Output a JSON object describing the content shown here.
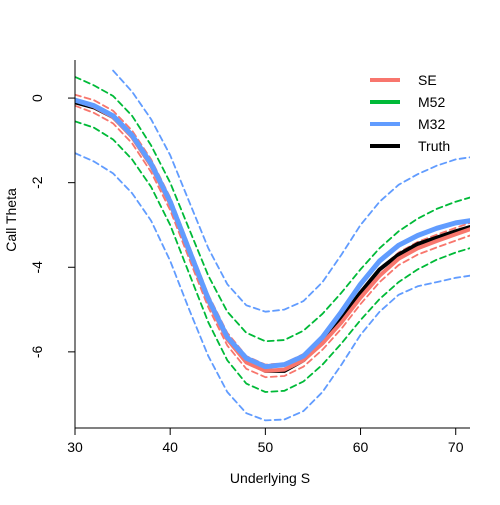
{
  "chart_data": {
    "type": "line",
    "title": "",
    "xlabel": "Underlying S",
    "ylabel": "Call Theta",
    "xlim": [
      30,
      71.5
    ],
    "ylim": [
      -7.8,
      0.9
    ],
    "x_ticks": [
      30,
      40,
      50,
      60,
      70
    ],
    "x_tick_labels": [
      "30",
      "40",
      "50",
      "60",
      "70"
    ],
    "y_ticks": [
      0,
      -2,
      -4,
      -6
    ],
    "y_tick_labels": [
      "0",
      "-2",
      "-4",
      "-6"
    ],
    "legend": {
      "position": "top-right",
      "entries": [
        {
          "label": "SE",
          "color": "#F8766D"
        },
        {
          "label": "M52",
          "color": "#00BA38"
        },
        {
          "label": "M32",
          "color": "#619CFF"
        },
        {
          "label": "Truth",
          "color": "#000000"
        }
      ]
    },
    "x": [
      30,
      32,
      34,
      36,
      38,
      40,
      42,
      44,
      46,
      48,
      50,
      52,
      54,
      56,
      58,
      60,
      62,
      64,
      66,
      68,
      70,
      71.5
    ],
    "series": [
      {
        "name": "Truth",
        "style": "solid",
        "color": "#000000",
        "values": [
          -0.1,
          -0.22,
          -0.45,
          -0.9,
          -1.55,
          -2.45,
          -3.6,
          -4.75,
          -5.65,
          -6.2,
          -6.45,
          -6.45,
          -6.2,
          -5.75,
          -5.2,
          -4.6,
          -4.05,
          -3.7,
          -3.45,
          -3.3,
          -3.15,
          -3.05
        ]
      },
      {
        "name": "SE",
        "style": "solid",
        "color": "#F8766D",
        "values": [
          -0.05,
          -0.2,
          -0.45,
          -0.92,
          -1.6,
          -2.5,
          -3.65,
          -4.8,
          -5.7,
          -6.25,
          -6.45,
          -6.42,
          -6.2,
          -5.8,
          -5.3,
          -4.72,
          -4.2,
          -3.8,
          -3.55,
          -3.38,
          -3.22,
          -3.1
        ]
      },
      {
        "name": "SE upper",
        "style": "dashed",
        "color": "#F8766D",
        "values": [
          0.08,
          -0.05,
          -0.3,
          -0.77,
          -1.45,
          -2.35,
          -3.5,
          -4.65,
          -5.55,
          -6.1,
          -6.3,
          -6.27,
          -6.05,
          -5.65,
          -5.15,
          -4.57,
          -4.05,
          -3.65,
          -3.4,
          -3.23,
          -3.07,
          -2.95
        ]
      },
      {
        "name": "SE lower",
        "style": "dashed",
        "color": "#F8766D",
        "values": [
          -0.18,
          -0.35,
          -0.6,
          -1.07,
          -1.75,
          -2.65,
          -3.8,
          -4.95,
          -5.85,
          -6.4,
          -6.6,
          -6.57,
          -6.35,
          -5.95,
          -5.45,
          -4.87,
          -4.35,
          -3.95,
          -3.7,
          -3.53,
          -3.37,
          -3.25
        ]
      },
      {
        "name": "M52 upper",
        "style": "dashed",
        "color": "#00BA38",
        "values": [
          0.5,
          0.3,
          0.05,
          -0.42,
          -1.12,
          -2.0,
          -3.1,
          -4.2,
          -5.05,
          -5.55,
          -5.75,
          -5.72,
          -5.5,
          -5.1,
          -4.6,
          -4.05,
          -3.55,
          -3.15,
          -2.85,
          -2.62,
          -2.45,
          -2.35
        ]
      },
      {
        "name": "M52 lower",
        "style": "dashed",
        "color": "#00BA38",
        "values": [
          -0.55,
          -0.7,
          -0.98,
          -1.45,
          -2.1,
          -3.0,
          -4.15,
          -5.3,
          -6.2,
          -6.75,
          -6.95,
          -6.92,
          -6.7,
          -6.3,
          -5.8,
          -5.25,
          -4.75,
          -4.35,
          -4.05,
          -3.82,
          -3.65,
          -3.55
        ]
      },
      {
        "name": "M32 upper",
        "style": "dashed",
        "color": "#619CFF",
        "values": [
          null,
          null,
          0.65,
          0.15,
          -0.5,
          -1.35,
          -2.45,
          -3.55,
          -4.4,
          -4.9,
          -5.05,
          -5.0,
          -4.8,
          -4.35,
          -3.7,
          -3.0,
          -2.45,
          -2.05,
          -1.8,
          -1.6,
          -1.45,
          -1.4
        ]
      },
      {
        "name": "M32 lower",
        "style": "dashed",
        "color": "#619CFF",
        "values": [
          -1.3,
          -1.5,
          -1.78,
          -2.25,
          -2.9,
          -3.85,
          -5.0,
          -6.1,
          -6.95,
          -7.45,
          -7.62,
          -7.6,
          -7.4,
          -6.95,
          -6.3,
          -5.6,
          -5.05,
          -4.65,
          -4.45,
          -4.35,
          -4.25,
          -4.2
        ]
      },
      {
        "name": "M32",
        "style": "solid",
        "color": "#619CFF",
        "values": [
          -0.05,
          -0.18,
          -0.42,
          -0.88,
          -1.55,
          -2.45,
          -3.6,
          -4.75,
          -5.65,
          -6.15,
          -6.35,
          -6.3,
          -6.1,
          -5.65,
          -5.05,
          -4.4,
          -3.85,
          -3.48,
          -3.25,
          -3.08,
          -2.95,
          -2.9
        ]
      }
    ]
  }
}
